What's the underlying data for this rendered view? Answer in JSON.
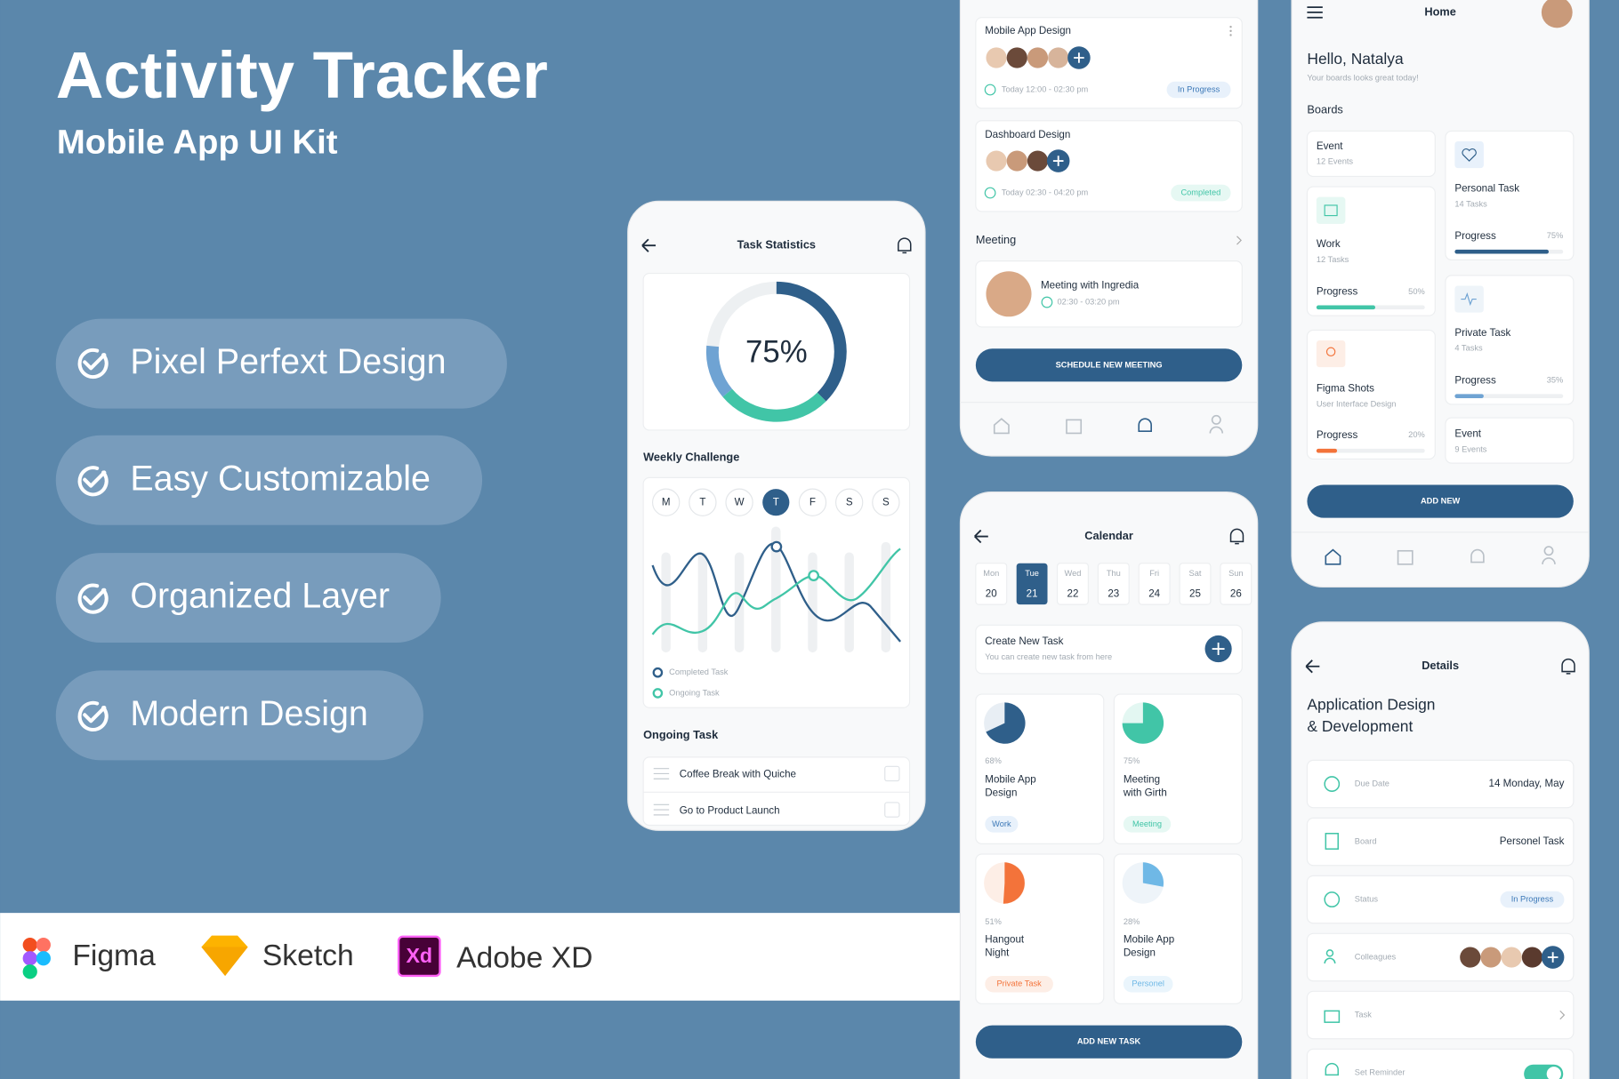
{
  "header": {
    "title": "Activity Tracker",
    "subtitle": "Mobile App UI Kit"
  },
  "features": [
    "Pixel Perfext Design",
    "Easy Customizable",
    "Organized Layer",
    "Modern Design"
  ],
  "tools": {
    "names": [
      "Figma",
      "Sketch",
      "Adobe XD"
    ],
    "xd_icon": "Xd"
  },
  "stats_screen": {
    "title": "Task Statistics",
    "percent": "75%",
    "weekly": "Weekly Challenge",
    "days": [
      "M",
      "T",
      "W",
      "T",
      "F",
      "S",
      "S"
    ],
    "legend": [
      "Completed Task",
      "Ongoing Task"
    ],
    "ongoing": "Ongoing Task",
    "tasks": [
      "Coffee Break with Quiche",
      "Go to Product Launch"
    ]
  },
  "meetings_screen": {
    "cards": [
      {
        "title": "Mobile App Design",
        "time": "Today 12:00 - 02:30 pm",
        "status": "In Progress"
      },
      {
        "title": "Dashboard Design",
        "time": "Today 02:30 - 04:20 pm",
        "status": "Completed"
      }
    ],
    "heading": "Meeting",
    "meeting": {
      "title": "Meeting with Ingredia",
      "time": "02:30 - 03:20 pm"
    },
    "button": "SCHEDULE NEW MEETING"
  },
  "calendar_screen": {
    "title": "Calendar",
    "days": [
      {
        "name": "Mon",
        "date": "20"
      },
      {
        "name": "Tue",
        "date": "21"
      },
      {
        "name": "Wed",
        "date": "22"
      },
      {
        "name": "Thu",
        "date": "23"
      },
      {
        "name": "Fri",
        "date": "24"
      },
      {
        "name": "Sat",
        "date": "25"
      },
      {
        "name": "Sun",
        "date": "26"
      }
    ],
    "create": {
      "title": "Create New Task",
      "subtitle": "You can create new task from here"
    },
    "cards": [
      {
        "percent": "68%",
        "title": [
          "Mobile App",
          "Design"
        ],
        "tag": "Work"
      },
      {
        "percent": "75%",
        "title": [
          "Meeting",
          "with Girth"
        ],
        "tag": "Meeting"
      },
      {
        "percent": "51%",
        "title": [
          "Hangout",
          "Night"
        ],
        "tag": "Private Task"
      },
      {
        "percent": "28%",
        "title": [
          "Mobile App",
          "Design"
        ],
        "tag": "Personel"
      }
    ],
    "button": "ADD NEW TASK"
  },
  "home_screen": {
    "title": "Home",
    "greeting": "Hello, Natalya",
    "subtitle": "Your boards looks great today!",
    "boards": "Boards",
    "left": [
      {
        "title": "Event",
        "sub": "12 Events"
      },
      {
        "title": "Work",
        "sub": "12 Tasks",
        "progress": "Progress",
        "percent": "50%"
      },
      {
        "title": "Figma Shots",
        "sub": "User Interface Design",
        "progress": "Progress",
        "percent": "20%"
      }
    ],
    "right": [
      {
        "title": "Personal Task",
        "sub": "14 Tasks",
        "progress": "Progress",
        "percent": "75%"
      },
      {
        "title": "Private Task",
        "sub": "4 Tasks",
        "progress": "Progress",
        "percent": "35%"
      },
      {
        "title": "Event",
        "sub": "9 Events"
      }
    ],
    "button": "ADD NEW"
  },
  "details_screen": {
    "title": "Details",
    "heading": [
      "Application Design",
      "& Development"
    ],
    "rows": [
      {
        "label": "Due Date",
        "value": "14 Monday, May"
      },
      {
        "label": "Board",
        "value": "Personel Task"
      },
      {
        "label": "Status",
        "value": "In Progress"
      },
      {
        "label": "Colleagues"
      },
      {
        "label": "Task"
      },
      {
        "label": "Set Reminder"
      }
    ]
  }
}
